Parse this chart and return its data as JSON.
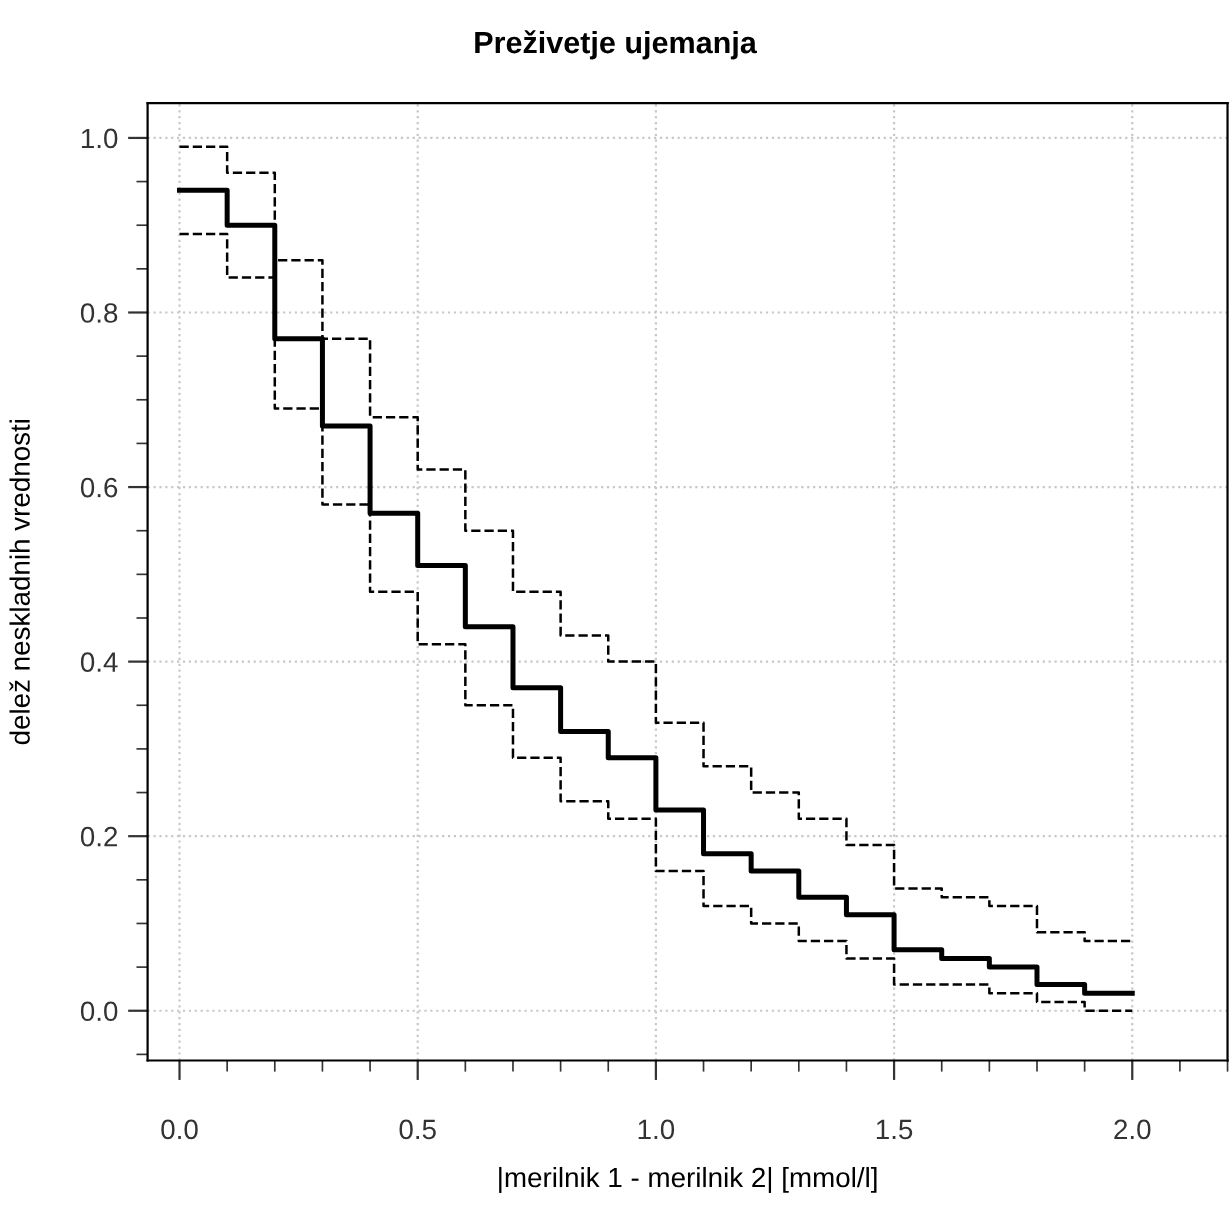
{
  "chart_data": {
    "type": "step",
    "title": "Preživetje ujemanja",
    "xlabel": "|merilnik 1 - merilnik 2| [mmol/l]",
    "ylabel": "delež neskladnih vrednosti",
    "x": [
      0,
      0.1,
      0.2,
      0.3,
      0.4,
      0.5,
      0.6,
      0.7,
      0.8,
      0.9,
      1.0,
      1.1,
      1.2,
      1.3,
      1.4,
      1.5,
      1.6,
      1.7,
      1.8,
      1.9,
      2.0
    ],
    "series": [
      {
        "color": "#000000",
        "line_style": "solid",
        "values": [
          0.94,
          0.9,
          0.77,
          0.67,
          0.57,
          0.51,
          0.44,
          0.37,
          0.32,
          0.29,
          0.23,
          0.18,
          0.16,
          0.13,
          0.11,
          0.07,
          0.06,
          0.05,
          0.03,
          0.02,
          0.02
        ]
      },
      {
        "color": "#000000",
        "line_style": "dashed",
        "values": [
          0.99,
          0.96,
          0.86,
          0.77,
          0.68,
          0.62,
          0.55,
          0.48,
          0.43,
          0.4,
          0.33,
          0.28,
          0.25,
          0.22,
          0.19,
          0.14,
          0.13,
          0.12,
          0.09,
          0.08,
          0.08
        ]
      },
      {
        "color": "#000000",
        "line_style": "dashed",
        "values": [
          0.89,
          0.84,
          0.69,
          0.58,
          0.48,
          0.42,
          0.35,
          0.29,
          0.24,
          0.22,
          0.16,
          0.12,
          0.1,
          0.08,
          0.06,
          0.03,
          0.03,
          0.02,
          0.01,
          0.0,
          0.0
        ]
      }
    ],
    "xlim": [
      -0.067,
      2.2
    ],
    "ylim": [
      -0.057,
      1.04
    ],
    "xticks": [
      {
        "value": 0,
        "label": "0.0"
      },
      0.5,
      {
        "value": 1,
        "label": "1.0"
      },
      1.5,
      {
        "value": 2,
        "label": "2.0"
      }
    ],
    "yticks": [
      {
        "value": 0,
        "label": "0.0"
      },
      0.2,
      0.4,
      0.6,
      0.8,
      {
        "value": 1,
        "label": "1.0"
      }
    ],
    "grid": true
  }
}
